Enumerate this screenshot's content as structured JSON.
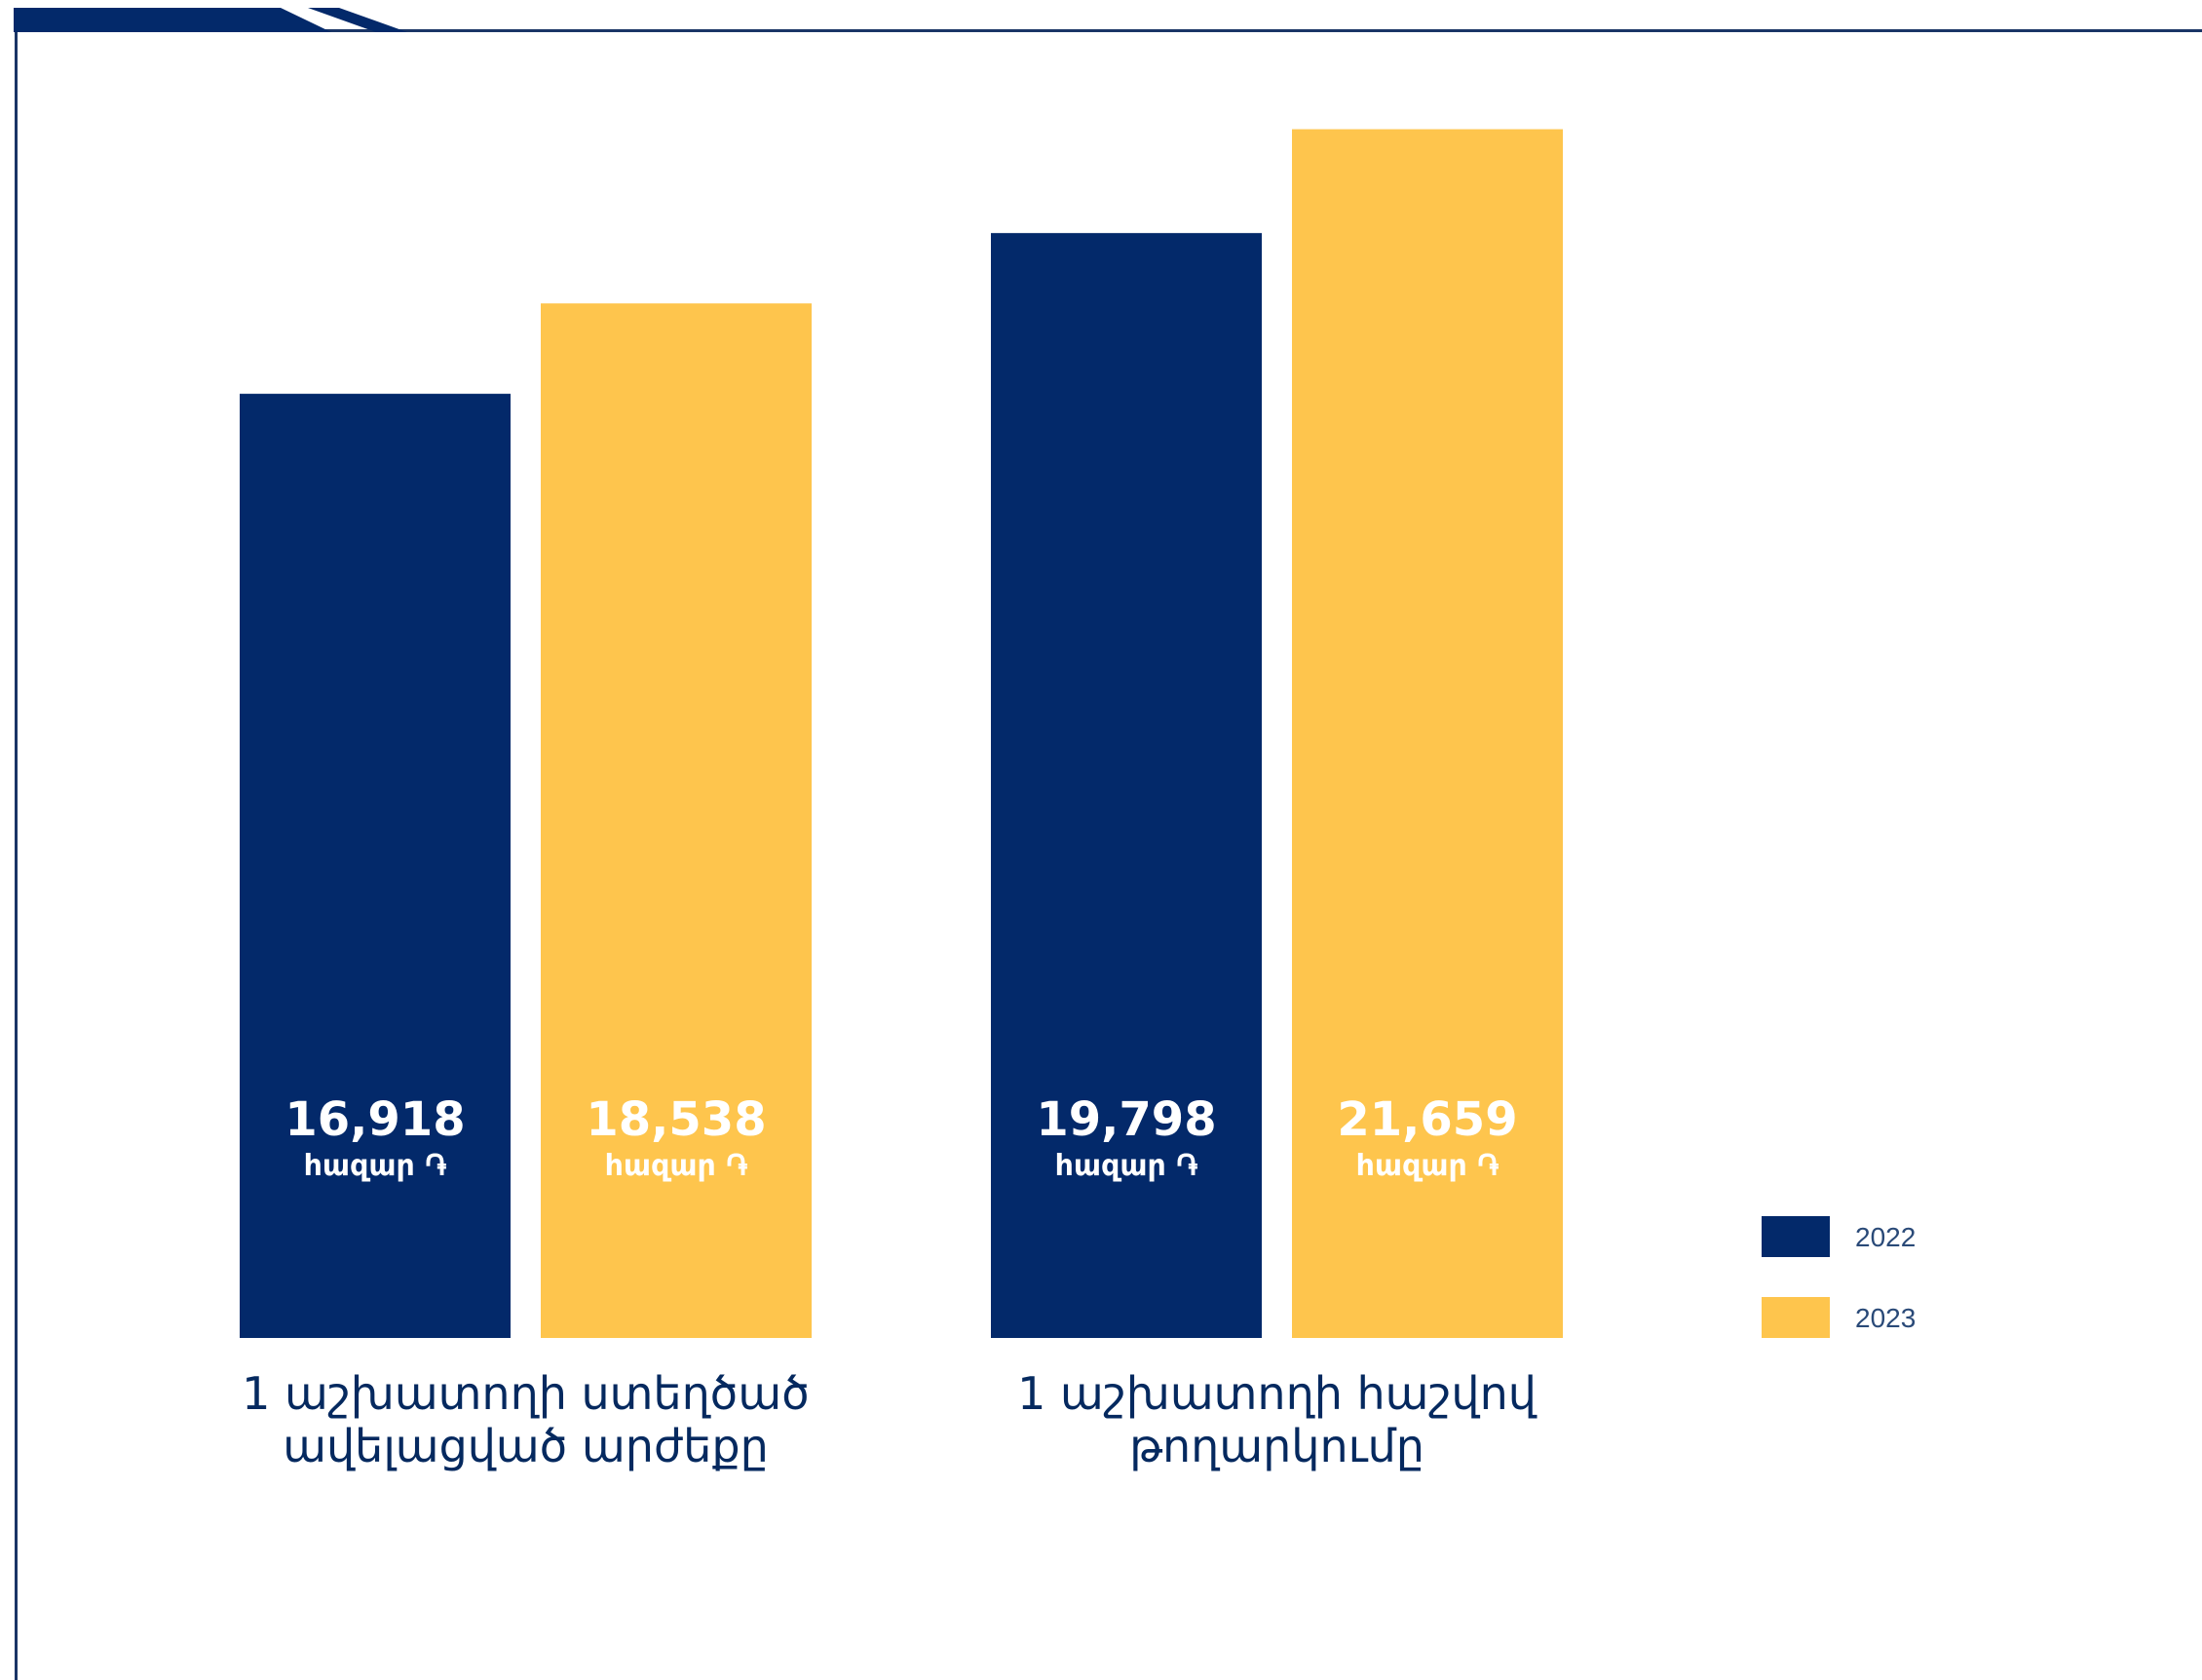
{
  "colors": {
    "series_2022": "#03296A",
    "series_2023": "#FEC54D",
    "frame": "#1a3566",
    "value_text": "#ffffff",
    "category_text": "#05295f",
    "legend_text": "#2a4a78"
  },
  "chart_data": {
    "type": "bar",
    "categories": [
      [
        "1 աշխատողի ստեղծած",
        "ավելացված արժեքը"
      ],
      [
        "1 աշխատողի հաշվով",
        "թողարկումը"
      ]
    ],
    "series": [
      {
        "name": "2022",
        "values": [
          16918,
          19798
        ],
        "labels": [
          "16,918",
          "19,798"
        ]
      },
      {
        "name": "2023",
        "values": [
          18538,
          21659
        ],
        "labels": [
          "18,538",
          "21,659"
        ]
      }
    ],
    "value_unit": "հազար ֏",
    "ylim": [
      0,
      23000
    ],
    "grid": false,
    "legend_position": "right"
  }
}
